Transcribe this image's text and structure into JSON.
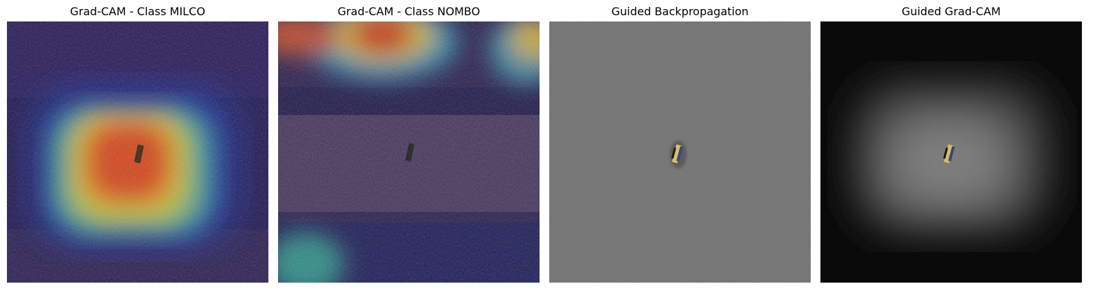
{
  "panels": [
    {
      "title": "Grad-CAM - Class MILCO"
    },
    {
      "title": "Grad-CAM - Class NOMBO"
    },
    {
      "title": "Guided Backpropagation"
    },
    {
      "title": "Guided Grad-CAM"
    }
  ]
}
